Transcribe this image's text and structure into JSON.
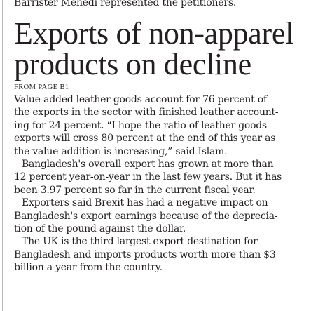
{
  "article": {
    "previous_line": "Barrister Mehedi represented the petitioners.",
    "headline_lines": [
      "Exports of non-apparel",
      "products on decline"
    ],
    "jump_label": "FROM PAGE B1",
    "paragraphs": [
      {
        "lines": [
          "Value-added leather goods account for 76 percent of",
          "the exports in the sector with finished leather account-",
          "ing for 24 percent. “I hope the ratio of leather goods",
          "exports will cross 80 percent at the end of this year as",
          "the value addition is increasing,” said Islam."
        ]
      },
      {
        "lines": [
          "Bangladesh's overall export has grown at more than",
          "12 percent year-on-year in the last few years. But it has",
          "been 3.97 percent so far in the current fiscal year."
        ]
      },
      {
        "lines": [
          "Exporters said Brexit has had a negative impact on",
          "Bangladesh's export earnings because of the deprecia-",
          "tion of the pound against the dollar."
        ]
      },
      {
        "lines": [
          "The UK is the third largest export destination for",
          "Bangladesh and imports products worth more than $3",
          "billion a year from the country."
        ]
      }
    ]
  }
}
